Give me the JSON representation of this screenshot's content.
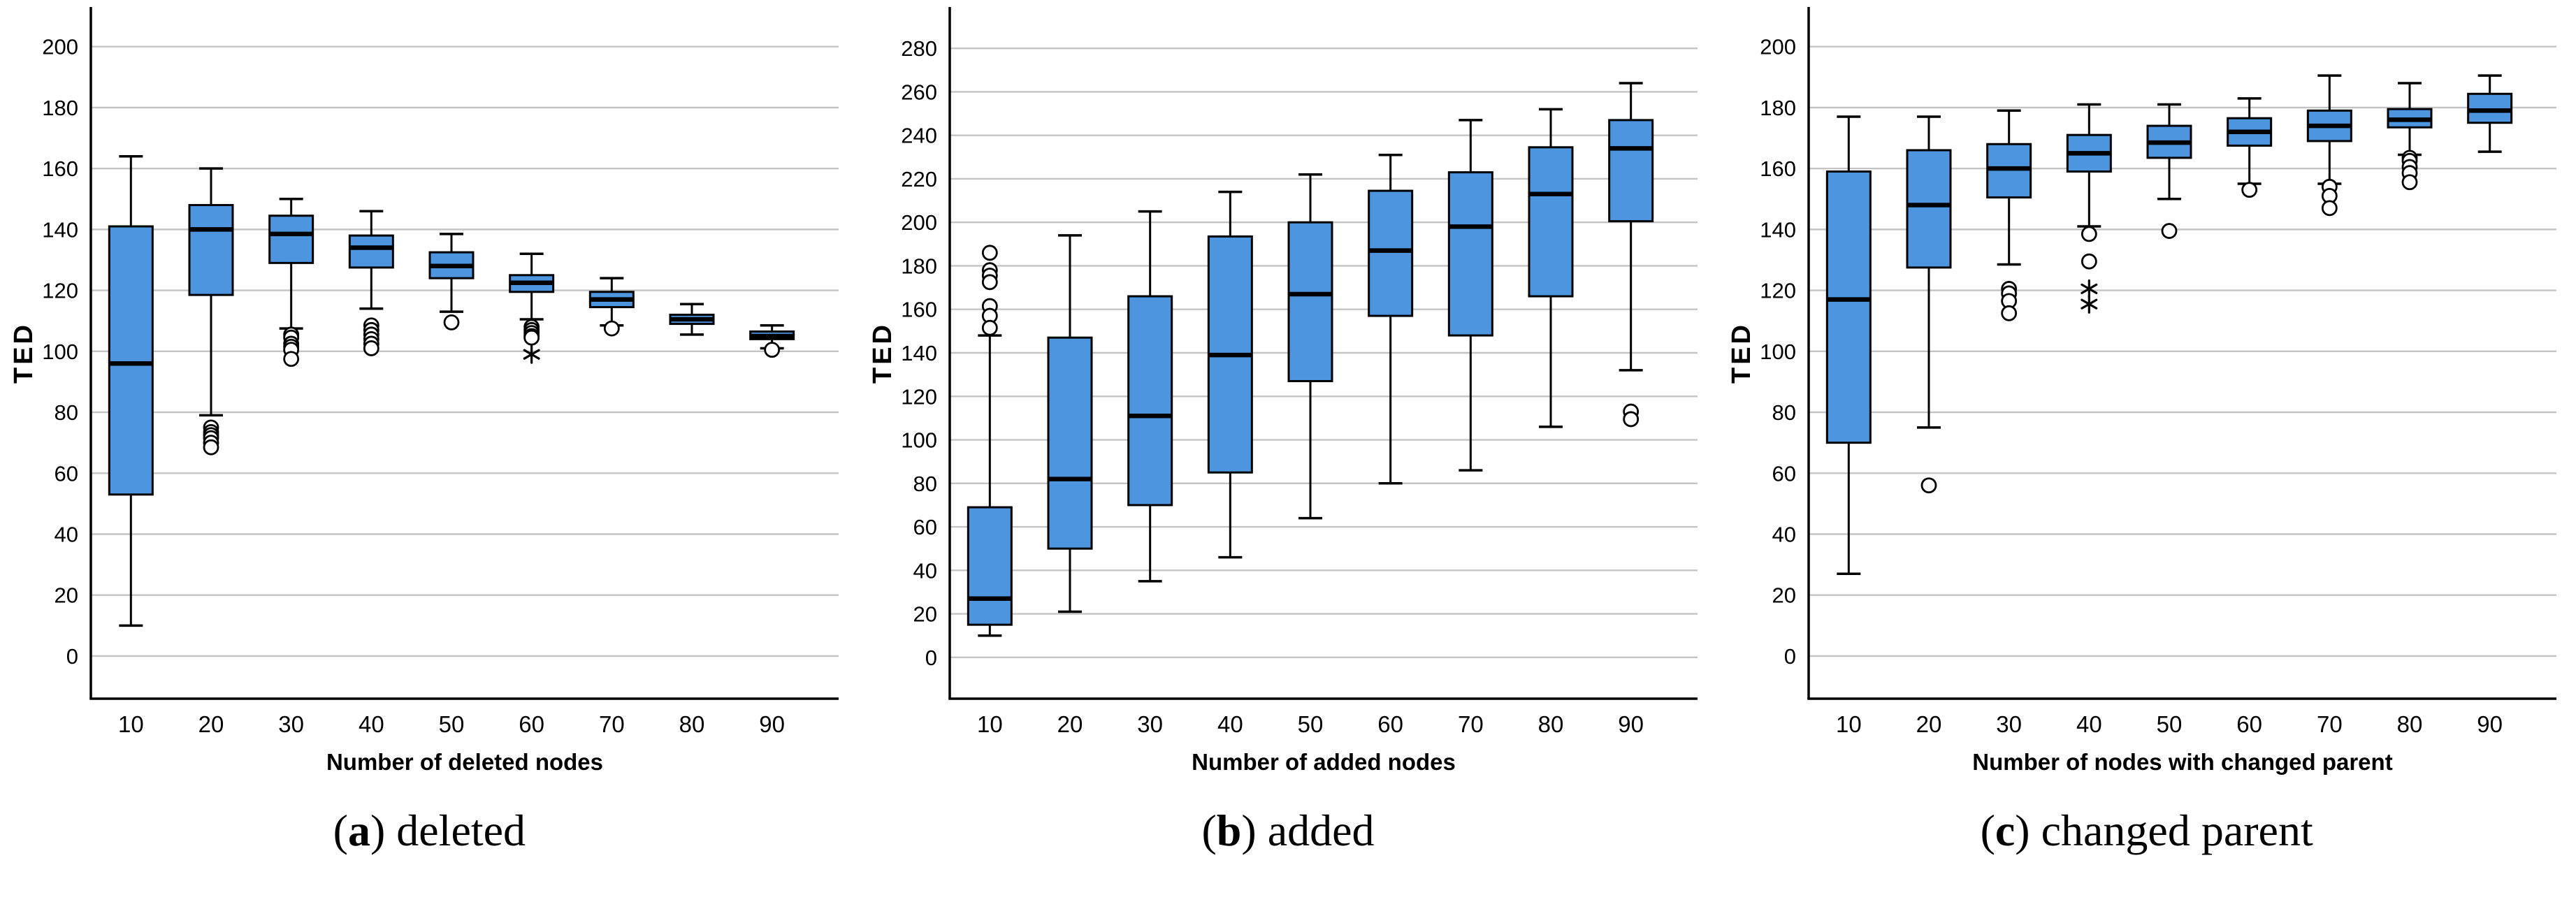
{
  "style": {
    "box_fill": "#4D96DF",
    "box_stroke": "#000000",
    "median_color": "#000000",
    "whisker_color": "#000000",
    "gridline_color": "#C4C4C4",
    "axis_color": "#000000",
    "outlier_fill": "#FFFFFF",
    "outlier_stroke": "#000000",
    "background": "#FFFFFF"
  },
  "chart_data": [
    {
      "type": "boxplot",
      "caption": {
        "pre": "(",
        "letter": "a",
        "post": ") deleted"
      },
      "xlabel": "Number of deleted nodes",
      "ylabel": "TED",
      "grid": "horizontal",
      "legend": "none",
      "categories": [
        10,
        20,
        30,
        40,
        50,
        60,
        70,
        80,
        90
      ],
      "y_ticks": [
        0,
        20,
        40,
        60,
        80,
        100,
        120,
        140,
        160,
        180,
        200
      ],
      "y_axis_min": -14,
      "y_axis_max": 213,
      "boxes": [
        {
          "category": 10,
          "whisker_low": 10,
          "q1": 53,
          "median": 96,
          "q3": 141,
          "whisker_high": 164,
          "outliers": [],
          "extremes": []
        },
        {
          "category": 20,
          "whisker_low": 79,
          "q1": 118.5,
          "median": 140,
          "q3": 148,
          "whisker_high": 160,
          "outliers": [
            75,
            73.5,
            72.5,
            71.5,
            70,
            68.5
          ],
          "extremes": []
        },
        {
          "category": 30,
          "whisker_low": 107.5,
          "q1": 129,
          "median": 138.5,
          "q3": 144.5,
          "whisker_high": 150,
          "outliers": [
            105.5,
            104.5,
            102.5,
            101.5,
            100.5,
            97.5
          ],
          "extremes": []
        },
        {
          "category": 40,
          "whisker_low": 114,
          "q1": 127.5,
          "median": 134,
          "q3": 138,
          "whisker_high": 146,
          "outliers": [
            108.5,
            107,
            105.5,
            104,
            102.5,
            101
          ],
          "extremes": []
        },
        {
          "category": 50,
          "whisker_low": 113,
          "q1": 124,
          "median": 128,
          "q3": 132.5,
          "whisker_high": 138.5,
          "outliers": [
            109.5
          ],
          "extremes": []
        },
        {
          "category": 60,
          "whisker_low": 110.5,
          "q1": 119.5,
          "median": 122.5,
          "q3": 125,
          "whisker_high": 132,
          "outliers": [
            108,
            107,
            106,
            105,
            104.5
          ],
          "extremes": [
            99
          ]
        },
        {
          "category": 70,
          "whisker_low": 108.5,
          "q1": 114.5,
          "median": 117,
          "q3": 119.5,
          "whisker_high": 124,
          "outliers": [
            107.5
          ],
          "extremes": []
        },
        {
          "category": 80,
          "whisker_low": 105.5,
          "q1": 109,
          "median": 110.5,
          "q3": 112,
          "whisker_high": 115.5,
          "outliers": [],
          "extremes": []
        },
        {
          "category": 90,
          "whisker_low": 101,
          "q1": 104,
          "median": 105,
          "q3": 106.5,
          "whisker_high": 108.5,
          "outliers": [
            100.5
          ],
          "extremes": []
        }
      ]
    },
    {
      "type": "boxplot",
      "caption": {
        "pre": "(",
        "letter": "b",
        "post": ") added"
      },
      "xlabel": "Number of added nodes",
      "ylabel": "TED",
      "grid": "horizontal",
      "legend": "none",
      "categories": [
        10,
        20,
        30,
        40,
        50,
        60,
        70,
        80,
        90
      ],
      "y_ticks": [
        0,
        20,
        40,
        60,
        80,
        100,
        120,
        140,
        160,
        180,
        200,
        220,
        240,
        260,
        280
      ],
      "y_axis_min": -19,
      "y_axis_max": 299,
      "boxes": [
        {
          "category": 10,
          "whisker_low": 10,
          "q1": 15,
          "median": 27,
          "q3": 69,
          "whisker_high": 148,
          "outliers": [
            186,
            178,
            175.5,
            172.5,
            161.5,
            157,
            151.5
          ],
          "extremes": []
        },
        {
          "category": 20,
          "whisker_low": 21,
          "q1": 50,
          "median": 82,
          "q3": 147,
          "whisker_high": 194,
          "outliers": [],
          "extremes": []
        },
        {
          "category": 30,
          "whisker_low": 35,
          "q1": 70,
          "median": 111,
          "q3": 166,
          "whisker_high": 205,
          "outliers": [],
          "extremes": []
        },
        {
          "category": 40,
          "whisker_low": 46,
          "q1": 85,
          "median": 139,
          "q3": 193.5,
          "whisker_high": 214,
          "outliers": [],
          "extremes": []
        },
        {
          "category": 50,
          "whisker_low": 64,
          "q1": 127,
          "median": 167,
          "q3": 200,
          "whisker_high": 222,
          "outliers": [],
          "extremes": []
        },
        {
          "category": 60,
          "whisker_low": 80,
          "q1": 157,
          "median": 187,
          "q3": 214.5,
          "whisker_high": 231,
          "outliers": [],
          "extremes": []
        },
        {
          "category": 70,
          "whisker_low": 86,
          "q1": 148,
          "median": 198,
          "q3": 223,
          "whisker_high": 247,
          "outliers": [],
          "extremes": []
        },
        {
          "category": 80,
          "whisker_low": 106,
          "q1": 166,
          "median": 213,
          "q3": 234.5,
          "whisker_high": 252,
          "outliers": [],
          "extremes": []
        },
        {
          "category": 90,
          "whisker_low": 132,
          "q1": 200.5,
          "median": 234,
          "q3": 247,
          "whisker_high": 264,
          "outliers": [
            113,
            109.5
          ],
          "extremes": []
        }
      ]
    },
    {
      "type": "boxplot",
      "caption": {
        "pre": "(",
        "letter": "c",
        "post": ") changed parent"
      },
      "xlabel": "Number of nodes with changed parent",
      "ylabel": "TED",
      "grid": "horizontal",
      "legend": "none",
      "categories": [
        10,
        20,
        30,
        40,
        50,
        60,
        70,
        80,
        90
      ],
      "y_ticks": [
        0,
        20,
        40,
        60,
        80,
        100,
        120,
        140,
        160,
        180,
        200
      ],
      "y_axis_min": -14,
      "y_axis_max": 213,
      "boxes": [
        {
          "category": 10,
          "whisker_low": 27,
          "q1": 70,
          "median": 117,
          "q3": 159,
          "whisker_high": 177,
          "outliers": [],
          "extremes": []
        },
        {
          "category": 20,
          "whisker_low": 75,
          "q1": 127.5,
          "median": 148,
          "q3": 166,
          "whisker_high": 177,
          "outliers": [
            56
          ],
          "extremes": []
        },
        {
          "category": 30,
          "whisker_low": 128.5,
          "q1": 150.5,
          "median": 160,
          "q3": 168,
          "whisker_high": 179,
          "outliers": [
            120.5,
            119,
            116.5,
            112.5
          ],
          "extremes": []
        },
        {
          "category": 40,
          "whisker_low": 141,
          "q1": 159,
          "median": 165,
          "q3": 171,
          "whisker_high": 181,
          "outliers": [
            138.5,
            129.5
          ],
          "extremes": [
            120.5,
            115.5
          ]
        },
        {
          "category": 50,
          "whisker_low": 150,
          "q1": 163.5,
          "median": 168.5,
          "q3": 174,
          "whisker_high": 181,
          "outliers": [
            139.5
          ],
          "extremes": []
        },
        {
          "category": 60,
          "whisker_low": 155,
          "q1": 167.5,
          "median": 172,
          "q3": 176.5,
          "whisker_high": 183,
          "outliers": [
            153
          ],
          "extremes": []
        },
        {
          "category": 70,
          "whisker_low": 155,
          "q1": 169,
          "median": 174,
          "q3": 179,
          "whisker_high": 190.5,
          "outliers": [
            154,
            151,
            147
          ],
          "extremes": []
        },
        {
          "category": 80,
          "whisker_low": 164.5,
          "q1": 173.5,
          "median": 176,
          "q3": 179.5,
          "whisker_high": 188,
          "outliers": [
            163.5,
            162.5,
            160.5,
            158.5,
            155.5
          ],
          "extremes": []
        },
        {
          "category": 90,
          "whisker_low": 165.5,
          "q1": 175,
          "median": 179,
          "q3": 184.5,
          "whisker_high": 190.5,
          "outliers": [],
          "extremes": []
        }
      ]
    }
  ]
}
